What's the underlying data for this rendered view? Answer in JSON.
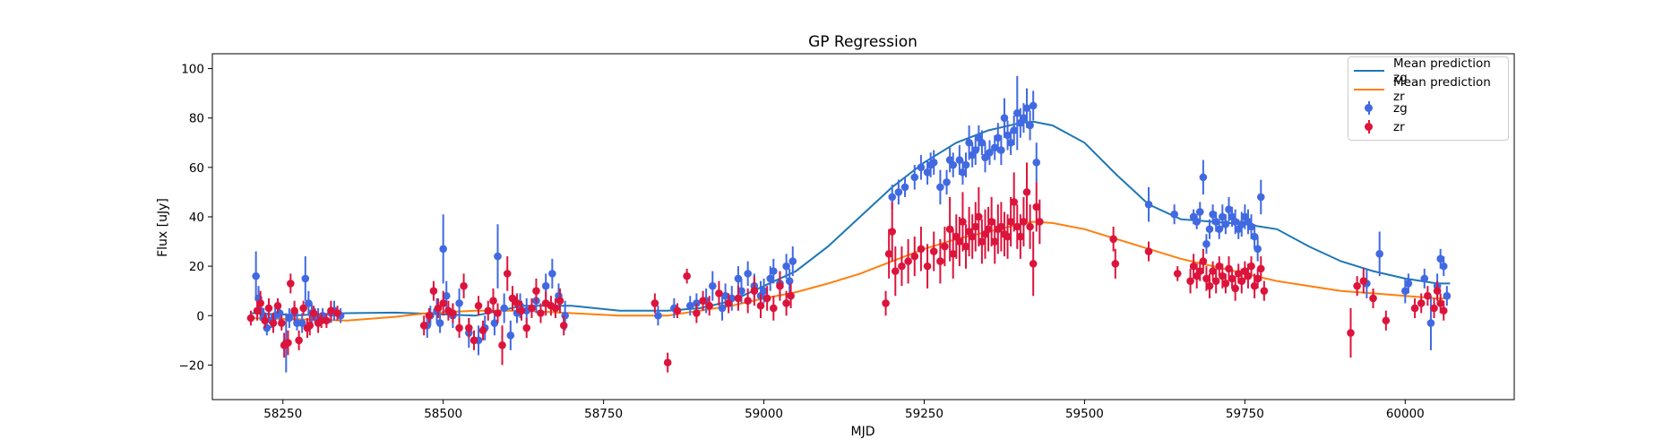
{
  "chart_data": {
    "type": "scatter",
    "title": "GP Regression",
    "xlabel": "MJD",
    "ylabel": "Flux [uJy]",
    "xlim": [
      58140,
      60170
    ],
    "ylim": [
      -34,
      106
    ],
    "xticks": [
      58250,
      58500,
      58750,
      59000,
      59250,
      59500,
      59750,
      60000
    ],
    "yticks": [
      -20,
      0,
      20,
      40,
      60,
      80,
      100
    ],
    "grid": false,
    "legend_position": "top-right",
    "lines": [
      {
        "name": "Mean prediction zg",
        "color": "#1f77b4",
        "x": [
          58200,
          58275,
          58350,
          58425,
          58475,
          58550,
          58625,
          58700,
          58775,
          58850,
          58900,
          58950,
          59000,
          59050,
          59100,
          59150,
          59200,
          59250,
          59300,
          59350,
          59400,
          59420,
          59450,
          59500,
          59550,
          59600,
          59650,
          59700,
          59750,
          59800,
          59850,
          59900,
          59950,
          60000,
          60050,
          60070
        ],
        "y": [
          1,
          0.2,
          1,
          1.2,
          0.8,
          0,
          4,
          4,
          2,
          2,
          3,
          6,
          12,
          18,
          28,
          40,
          52,
          62,
          70,
          75,
          78,
          78.5,
          77,
          70,
          57,
          45,
          39,
          38,
          37,
          35,
          28,
          22,
          18,
          15,
          13,
          13
        ]
      },
      {
        "name": "Mean prediction zr",
        "color": "#ff7f0e",
        "x": [
          58200,
          58275,
          58350,
          58425,
          58475,
          58550,
          58625,
          58700,
          58775,
          58850,
          58900,
          58950,
          59000,
          59050,
          59100,
          59150,
          59200,
          59250,
          59300,
          59350,
          59400,
          59420,
          59450,
          59500,
          59550,
          59600,
          59650,
          59700,
          59750,
          59800,
          59850,
          59900,
          59950,
          60000,
          60050,
          60070
        ],
        "y": [
          -1,
          -1.5,
          -2,
          -0.5,
          1,
          2,
          2,
          1,
          0,
          0,
          2,
          4,
          7,
          9.5,
          13,
          17,
          22,
          27,
          31,
          34,
          37,
          38,
          37.5,
          35,
          31,
          27,
          23,
          20,
          17,
          14,
          12,
          10,
          9,
          8,
          7,
          7
        ]
      }
    ],
    "series": [
      {
        "name": "zg",
        "color": "#4169e1",
        "x": [
          58208,
          58212,
          58215,
          58220,
          58225,
          58232,
          58238,
          58245,
          58255,
          58260,
          58268,
          58272,
          58280,
          58285,
          58290,
          58295,
          58300,
          58305,
          58312,
          58325,
          58330,
          58340,
          58475,
          58480,
          58490,
          58495,
          58500,
          58505,
          58515,
          58525,
          58540,
          58555,
          58565,
          58580,
          58585,
          58595,
          58605,
          58615,
          58620,
          58630,
          58645,
          58660,
          58670,
          58680,
          58690,
          58835,
          58860,
          58885,
          58895,
          58910,
          58920,
          58935,
          58940,
          58950,
          58960,
          58965,
          58975,
          58985,
          58995,
          59000,
          59010,
          59015,
          59025,
          59035,
          59040,
          59045,
          59200,
          59210,
          59220,
          59235,
          59245,
          59255,
          59260,
          59265,
          59275,
          59285,
          59290,
          59295,
          59305,
          59310,
          59315,
          59320,
          59325,
          59330,
          59335,
          59340,
          59345,
          59352,
          59360,
          59365,
          59370,
          59375,
          59380,
          59385,
          59390,
          59395,
          59400,
          59405,
          59410,
          59415,
          59420,
          59425,
          59600,
          59640,
          59670,
          59675,
          59680,
          59685,
          59690,
          59695,
          59700,
          59705,
          59710,
          59715,
          59720,
          59725,
          59730,
          59735,
          59740,
          59745,
          59750,
          59755,
          59760,
          59765,
          59770,
          59775,
          59940,
          59960,
          60000,
          60005,
          60030,
          60040,
          60050,
          60055,
          60060,
          60065
        ],
        "y": [
          16,
          7,
          2,
          0,
          -5,
          -2,
          0,
          1,
          -11,
          -1,
          1,
          -3,
          -3,
          15,
          5,
          1,
          0,
          -1,
          0,
          1,
          2,
          0,
          -4,
          0,
          2,
          -3,
          27,
          8,
          0,
          5,
          -7,
          -10,
          -5,
          -3,
          24,
          3,
          -8,
          1,
          4,
          2,
          6,
          12,
          17,
          8,
          0,
          0,
          3,
          4,
          5,
          6,
          12,
          3,
          8,
          7,
          15,
          10,
          17,
          12,
          8,
          10,
          15,
          18,
          13,
          20,
          14,
          22,
          48,
          50,
          52,
          56,
          60,
          58,
          61,
          62,
          52,
          54,
          63,
          61,
          63,
          58,
          61,
          70,
          65,
          67,
          72,
          70,
          64,
          66,
          68,
          72,
          67,
          80,
          73,
          70,
          75,
          82,
          78,
          80,
          84,
          77,
          85,
          62,
          45,
          41,
          40,
          38,
          42,
          56,
          29,
          35,
          41,
          38,
          35,
          40,
          37,
          43,
          40,
          38,
          35,
          37,
          40,
          38,
          36,
          32,
          27,
          48,
          13,
          25,
          10,
          13,
          15,
          -3,
          12,
          23,
          20,
          8
        ],
        "err": [
          10,
          5,
          4,
          3,
          3,
          3,
          3,
          3,
          12,
          4,
          4,
          3,
          4,
          9,
          5,
          4,
          3,
          4,
          3,
          4,
          4,
          3,
          5,
          4,
          5,
          4,
          14,
          6,
          5,
          6,
          6,
          6,
          5,
          5,
          13,
          6,
          6,
          4,
          5,
          5,
          5,
          5,
          6,
          5,
          6,
          4,
          4,
          4,
          4,
          5,
          6,
          5,
          5,
          5,
          5,
          5,
          5,
          5,
          6,
          5,
          5,
          5,
          5,
          5,
          5,
          6,
          5,
          5,
          4,
          5,
          5,
          5,
          5,
          5,
          7,
          5,
          5,
          5,
          6,
          5,
          5,
          7,
          5,
          6,
          5,
          5,
          6,
          5,
          5,
          6,
          6,
          8,
          6,
          5,
          6,
          15,
          6,
          6,
          8,
          6,
          6,
          8,
          7,
          4,
          3,
          3,
          4,
          7,
          4,
          4,
          4,
          4,
          4,
          5,
          4,
          5,
          4,
          5,
          4,
          5,
          5,
          5,
          5,
          5,
          5,
          7,
          6,
          9,
          5,
          4,
          4,
          11,
          5,
          4,
          4,
          4
        ]
      },
      {
        "name": "zr",
        "color": "#dc143c",
        "x": [
          58200,
          58210,
          58215,
          58222,
          58228,
          58235,
          58242,
          58248,
          58252,
          58258,
          58262,
          58268,
          58275,
          58282,
          58288,
          58292,
          58298,
          58305,
          58310,
          58318,
          58325,
          58335,
          58470,
          58478,
          58485,
          58492,
          58500,
          58508,
          58515,
          58525,
          58532,
          58540,
          58548,
          58555,
          58562,
          58570,
          58578,
          58585,
          58592,
          58600,
          58608,
          58615,
          58622,
          58630,
          58638,
          58645,
          58652,
          58660,
          58668,
          58675,
          58682,
          58688,
          58830,
          58850,
          58865,
          58880,
          58895,
          58905,
          58915,
          58930,
          58945,
          58960,
          58975,
          58985,
          58995,
          59005,
          59015,
          59025,
          59035,
          59042,
          59190,
          59195,
          59200,
          59205,
          59215,
          59225,
          59235,
          59245,
          59255,
          59265,
          59275,
          59282,
          59290,
          59295,
          59300,
          59305,
          59310,
          59315,
          59320,
          59325,
          59330,
          59335,
          59340,
          59345,
          59350,
          59355,
          59360,
          59365,
          59370,
          59375,
          59380,
          59385,
          59390,
          59395,
          59400,
          59405,
          59410,
          59415,
          59420,
          59425,
          59430,
          59545,
          59548,
          59600,
          59645,
          59665,
          59670,
          59675,
          59680,
          59685,
          59690,
          59695,
          59700,
          59705,
          59710,
          59715,
          59720,
          59725,
          59730,
          59735,
          59740,
          59745,
          59750,
          59755,
          59760,
          59765,
          59770,
          59775,
          59780,
          59915,
          59925,
          59935,
          59950,
          59970,
          60015,
          60025,
          60035,
          60045,
          60050,
          60055,
          60060
        ],
        "y": [
          -1,
          2,
          5,
          -2,
          3,
          -3,
          4,
          -3,
          -12,
          -11,
          13,
          2,
          -10,
          3,
          -5,
          -4,
          1,
          -3,
          -2,
          -2,
          2,
          1,
          -4,
          0,
          10,
          3,
          5,
          2,
          1,
          -5,
          12,
          -5,
          -10,
          4,
          -6,
          2,
          6,
          1,
          -12,
          17,
          7,
          5,
          2,
          -5,
          3,
          10,
          1,
          5,
          4,
          3,
          6,
          -4,
          5,
          -19,
          2,
          16,
          1,
          6,
          4,
          9,
          5,
          7,
          6,
          10,
          4,
          7,
          3,
          12,
          5,
          8,
          5,
          25,
          34,
          18,
          20,
          22,
          24,
          27,
          20,
          26,
          22,
          28,
          35,
          25,
          32,
          30,
          38,
          28,
          34,
          32,
          36,
          40,
          30,
          33,
          35,
          38,
          30,
          35,
          36,
          33,
          32,
          38,
          46,
          36,
          32,
          38,
          50,
          36,
          21,
          44,
          38,
          31,
          21,
          26,
          17,
          14,
          20,
          16,
          18,
          22,
          15,
          12,
          18,
          14,
          20,
          16,
          13,
          19,
          15,
          11,
          17,
          14,
          18,
          16,
          20,
          12,
          15,
          19,
          10,
          -7,
          12,
          14,
          7,
          -2,
          3,
          5,
          8,
          3,
          10,
          5,
          2
        ],
        "err": [
          3,
          4,
          5,
          3,
          4,
          4,
          3,
          3,
          5,
          5,
          4,
          4,
          4,
          3,
          4,
          4,
          3,
          4,
          3,
          3,
          4,
          3,
          4,
          3,
          4,
          4,
          5,
          4,
          4,
          4,
          5,
          4,
          4,
          4,
          4,
          4,
          5,
          4,
          8,
          7,
          5,
          4,
          4,
          4,
          4,
          5,
          4,
          5,
          4,
          4,
          5,
          4,
          4,
          4,
          3,
          3,
          4,
          4,
          4,
          5,
          4,
          5,
          5,
          6,
          5,
          5,
          5,
          6,
          5,
          5,
          5,
          10,
          12,
          10,
          8,
          9,
          8,
          9,
          9,
          8,
          9,
          8,
          13,
          10,
          9,
          10,
          12,
          9,
          10,
          9,
          10,
          12,
          9,
          10,
          9,
          10,
          9,
          10,
          10,
          9,
          9,
          10,
          12,
          9,
          9,
          10,
          12,
          9,
          13,
          10,
          9,
          5,
          6,
          4,
          3,
          5,
          5,
          5,
          4,
          5,
          5,
          5,
          4,
          5,
          4,
          5,
          4,
          5,
          4,
          5,
          4,
          5,
          4,
          5,
          4,
          5,
          4,
          5,
          4,
          10,
          4,
          5,
          4,
          4,
          4,
          4,
          4,
          4,
          4,
          4,
          4
        ]
      }
    ]
  }
}
